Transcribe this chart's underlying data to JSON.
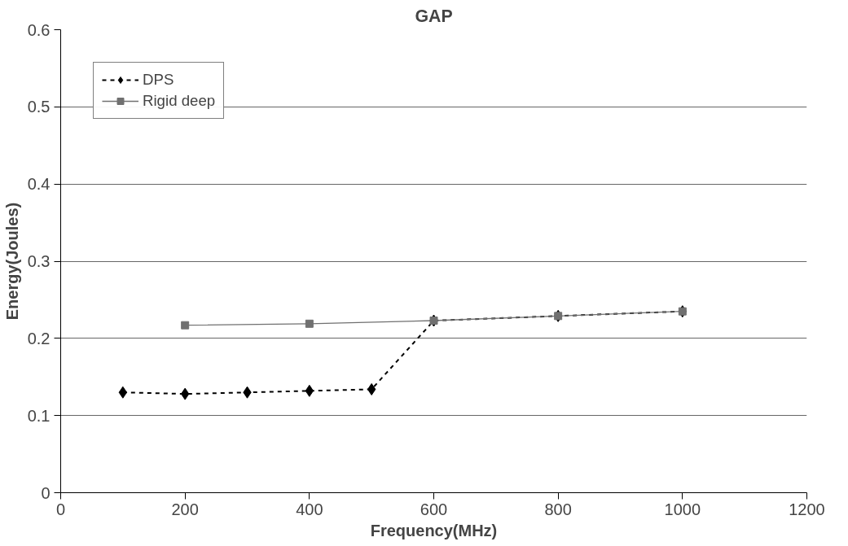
{
  "chart_data": {
    "type": "line",
    "title": "GAP",
    "xlabel": "Frequency(MHz)",
    "ylabel": "Energy(Joules)",
    "xlim": [
      0,
      1200
    ],
    "xticks": [
      0,
      200,
      400,
      600,
      800,
      1000,
      1200
    ],
    "ylim": [
      0,
      0.6
    ],
    "yticks": [
      0,
      0.1,
      0.2,
      0.3,
      0.4,
      0.5,
      0.6
    ],
    "grid": "y",
    "legend": "top left",
    "series": [
      {
        "name": "DPS",
        "color": "#000000",
        "marker": "diamond",
        "line_style": "dashed",
        "x": [
          100,
          200,
          300,
          400,
          500,
          600,
          800,
          1000
        ],
        "values": [
          0.13,
          0.128,
          0.13,
          0.132,
          0.134,
          0.223,
          0.229,
          0.235
        ]
      },
      {
        "name": "Rigid deep",
        "color": "#707070",
        "marker": "square",
        "line_style": "solid",
        "x": [
          200,
          400,
          600,
          800,
          1000
        ],
        "values": [
          0.217,
          0.219,
          0.223,
          0.229,
          0.235
        ]
      }
    ]
  }
}
